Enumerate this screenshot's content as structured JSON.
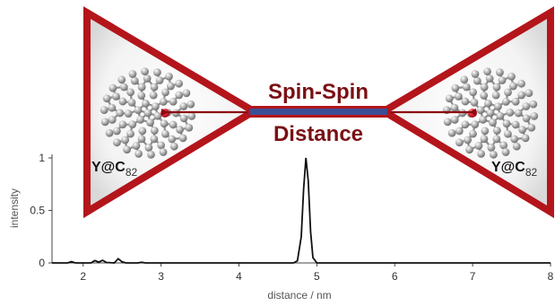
{
  "diagram": {
    "label_line1": "Spin-Spin",
    "label_line2": "Distance",
    "molecule_left": {
      "main": "Y@C",
      "sub": "82"
    },
    "molecule_right": {
      "main": "Y@C",
      "sub": "82"
    },
    "colors": {
      "frame": "#b3151b",
      "label": "#7a1015",
      "bar_fill": "#3c4f96",
      "arrow": "#8b0a10",
      "yttrium": "#e8273a",
      "carbon": "#9a9a9a"
    }
  },
  "chart_data": {
    "type": "line",
    "xlabel": "distance / nm",
    "ylabel": "intensity",
    "xlim": [
      1.6,
      8.0
    ],
    "ylim": [
      0,
      1.0
    ],
    "xticks": [
      2,
      3,
      4,
      5,
      6,
      7,
      8
    ],
    "yticks": [
      0,
      0.5,
      1
    ],
    "series": [
      {
        "points": [
          [
            1.6,
            0.0
          ],
          [
            1.8,
            0.0
          ],
          [
            1.85,
            0.012
          ],
          [
            1.9,
            0.0
          ],
          [
            2.1,
            0.0
          ],
          [
            2.15,
            0.022
          ],
          [
            2.2,
            0.008
          ],
          [
            2.25,
            0.025
          ],
          [
            2.3,
            0.004
          ],
          [
            2.4,
            0.0
          ],
          [
            2.45,
            0.04
          ],
          [
            2.5,
            0.01
          ],
          [
            2.55,
            0.0
          ],
          [
            2.7,
            0.0
          ],
          [
            2.75,
            0.006
          ],
          [
            2.8,
            0.0
          ],
          [
            4.7,
            0.0
          ],
          [
            4.75,
            0.02
          ],
          [
            4.8,
            0.25
          ],
          [
            4.83,
            0.7
          ],
          [
            4.86,
            1.0
          ],
          [
            4.89,
            0.78
          ],
          [
            4.92,
            0.3
          ],
          [
            4.95,
            0.05
          ],
          [
            5.0,
            0.0
          ],
          [
            8.0,
            0.0
          ]
        ]
      }
    ]
  }
}
